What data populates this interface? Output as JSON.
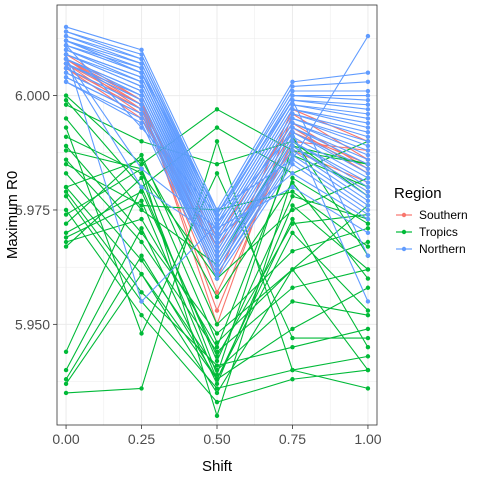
{
  "chart_data": {
    "type": "line",
    "xlabel": "Shift",
    "ylabel": "Maximum R0",
    "x": [
      0.0,
      0.25,
      0.5,
      0.75,
      1.0
    ],
    "x_ticks": [
      "0.00",
      "0.25",
      "0.50",
      "0.75",
      "1.00"
    ],
    "y_ticks": [
      "5.950",
      "5.975",
      "6.000"
    ],
    "xlim": [
      -0.03,
      1.03
    ],
    "ylim": [
      5.928,
      6.0198
    ],
    "grid": true,
    "legend": {
      "title": "Region",
      "placement": "right",
      "entries": [
        "Southern",
        "Tropics",
        "Northern"
      ]
    },
    "colors": {
      "Southern": "#F8766D",
      "Tropics": "#00BA38",
      "Northern": "#619CFF"
    },
    "series": [
      {
        "region": "Southern",
        "values": [
          6.008,
          5.999,
          5.95,
          5.996,
          5.986
        ]
      },
      {
        "region": "Southern",
        "values": [
          6.007,
          5.998,
          5.953,
          5.993,
          5.983
        ]
      },
      {
        "region": "Southern",
        "values": [
          6.006,
          5.997,
          5.957,
          5.99,
          5.988
        ]
      },
      {
        "region": "Southern",
        "values": [
          6.009,
          5.999,
          5.96,
          5.997,
          5.99
        ]
      },
      {
        "region": "Southern",
        "values": [
          6.007,
          5.996,
          5.962,
          5.989,
          5.979
        ]
      },
      {
        "region": "Southern",
        "values": [
          6.008,
          5.998,
          5.965,
          5.992,
          5.985
        ]
      },
      {
        "region": "Southern",
        "values": [
          6.006,
          5.995,
          5.967,
          5.988,
          5.981
        ]
      },
      {
        "region": "Southern",
        "values": [
          6.008,
          5.997,
          5.969,
          5.994,
          5.984
        ]
      },
      {
        "region": "Tropics",
        "values": [
          6.0,
          5.985,
          5.997,
          5.988,
          5.985
        ]
      },
      {
        "region": "Tropics",
        "values": [
          5.999,
          5.98,
          5.993,
          5.983,
          5.99
        ]
      },
      {
        "region": "Tropics",
        "values": [
          5.998,
          5.99,
          5.985,
          5.99,
          5.978
        ]
      },
      {
        "region": "Tropics",
        "values": [
          5.995,
          5.975,
          5.963,
          5.991,
          5.965
        ]
      },
      {
        "region": "Tropics",
        "values": [
          5.991,
          5.983,
          5.96,
          5.975,
          5.982
        ]
      },
      {
        "region": "Tropics",
        "values": [
          5.989,
          5.97,
          5.948,
          5.962,
          5.976
        ]
      },
      {
        "region": "Tropics",
        "values": [
          5.986,
          5.968,
          5.944,
          5.958,
          5.962
        ]
      },
      {
        "region": "Tropics",
        "values": [
          5.983,
          5.964,
          5.94,
          5.955,
          5.952
        ]
      },
      {
        "region": "Tropics",
        "values": [
          5.98,
          5.961,
          5.938,
          5.949,
          5.958
        ]
      },
      {
        "region": "Tropics",
        "values": [
          5.979,
          5.957,
          5.941,
          5.945,
          5.949
        ]
      },
      {
        "region": "Tropics",
        "values": [
          5.978,
          5.955,
          5.936,
          5.94,
          5.943
        ]
      },
      {
        "region": "Tropics",
        "values": [
          5.975,
          5.952,
          5.933,
          5.938,
          5.94
        ]
      },
      {
        "region": "Tropics",
        "values": [
          5.974,
          5.984,
          5.946,
          5.962,
          5.968
        ]
      },
      {
        "region": "Tropics",
        "values": [
          5.972,
          5.987,
          5.95,
          5.966,
          5.971
        ]
      },
      {
        "region": "Tropics",
        "values": [
          5.97,
          5.979,
          5.943,
          5.972,
          5.974
        ]
      },
      {
        "region": "Tropics",
        "values": [
          5.969,
          5.977,
          5.938,
          5.97,
          5.953
        ]
      },
      {
        "region": "Tropics",
        "values": [
          5.968,
          5.973,
          5.945,
          5.987,
          5.98
        ]
      },
      {
        "region": "Tropics",
        "values": [
          5.967,
          5.982,
          5.939,
          5.989,
          5.985
        ]
      },
      {
        "region": "Tropics",
        "values": [
          5.98,
          5.986,
          5.956,
          5.981,
          5.96
        ]
      },
      {
        "region": "Tropics",
        "values": [
          5.985,
          5.976,
          5.975,
          5.979,
          5.967
        ]
      },
      {
        "region": "Tropics",
        "values": [
          5.944,
          5.98,
          5.942,
          5.978,
          5.973
        ]
      },
      {
        "region": "Tropics",
        "values": [
          5.94,
          5.971,
          5.937,
          5.976,
          5.962
        ]
      },
      {
        "region": "Tropics",
        "values": [
          5.938,
          5.965,
          5.938,
          5.973,
          5.945
        ]
      },
      {
        "region": "Tropics",
        "values": [
          5.937,
          5.961,
          5.935,
          5.962,
          5.94
        ]
      },
      {
        "region": "Tropics",
        "values": [
          5.935,
          5.936,
          5.99,
          5.94,
          5.936
        ]
      },
      {
        "region": "Tropics",
        "values": [
          5.993,
          5.948,
          5.983,
          5.947,
          5.947
        ]
      },
      {
        "region": "Tropics",
        "values": [
          5.988,
          5.984,
          5.93,
          5.982,
          5.972
        ]
      },
      {
        "region": "Northern",
        "values": [
          6.015,
          6.01,
          5.975,
          6.003,
          6.005
        ]
      },
      {
        "region": "Northern",
        "values": [
          6.014,
          6.009,
          5.974,
          6.002,
          6.003
        ]
      },
      {
        "region": "Northern",
        "values": [
          6.014,
          6.008,
          5.974,
          6.001,
          6.001
        ]
      },
      {
        "region": "Northern",
        "values": [
          6.013,
          6.008,
          5.973,
          6.0,
          6.0
        ]
      },
      {
        "region": "Northern",
        "values": [
          6.013,
          6.007,
          5.973,
          6.0,
          5.999
        ]
      },
      {
        "region": "Northern",
        "values": [
          6.012,
          6.007,
          5.972,
          5.999,
          5.998
        ]
      },
      {
        "region": "Northern",
        "values": [
          6.012,
          6.006,
          5.972,
          5.999,
          5.997
        ]
      },
      {
        "region": "Northern",
        "values": [
          6.011,
          6.006,
          5.971,
          5.998,
          5.996
        ]
      },
      {
        "region": "Northern",
        "values": [
          6.011,
          6.005,
          5.971,
          5.998,
          5.995
        ]
      },
      {
        "region": "Northern",
        "values": [
          6.011,
          6.005,
          5.97,
          5.997,
          5.994
        ]
      },
      {
        "region": "Northern",
        "values": [
          6.01,
          6.004,
          5.97,
          5.997,
          5.993
        ]
      },
      {
        "region": "Northern",
        "values": [
          6.01,
          6.004,
          5.969,
          5.996,
          5.992
        ]
      },
      {
        "region": "Northern",
        "values": [
          6.01,
          6.003,
          5.969,
          5.996,
          5.991
        ]
      },
      {
        "region": "Northern",
        "values": [
          6.009,
          6.003,
          5.968,
          5.995,
          5.99
        ]
      },
      {
        "region": "Northern",
        "values": [
          6.009,
          6.002,
          5.968,
          5.995,
          5.989
        ]
      },
      {
        "region": "Northern",
        "values": [
          6.009,
          6.002,
          5.967,
          5.994,
          5.988
        ]
      },
      {
        "region": "Northern",
        "values": [
          6.008,
          6.001,
          5.967,
          5.994,
          5.987
        ]
      },
      {
        "region": "Northern",
        "values": [
          6.008,
          6.001,
          5.966,
          5.993,
          5.986
        ]
      },
      {
        "region": "Northern",
        "values": [
          6.008,
          6.0,
          5.966,
          5.993,
          5.985
        ]
      },
      {
        "region": "Northern",
        "values": [
          6.007,
          6.0,
          5.965,
          5.992,
          5.984
        ]
      },
      {
        "region": "Northern",
        "values": [
          6.007,
          5.999,
          5.965,
          5.992,
          5.983
        ]
      },
      {
        "region": "Northern",
        "values": [
          6.007,
          5.999,
          5.964,
          5.991,
          5.982
        ]
      },
      {
        "region": "Northern",
        "values": [
          6.006,
          5.998,
          5.964,
          5.99,
          5.981
        ]
      },
      {
        "region": "Northern",
        "values": [
          6.006,
          5.998,
          5.963,
          5.99,
          5.98
        ]
      },
      {
        "region": "Northern",
        "values": [
          6.005,
          5.997,
          5.963,
          5.989,
          5.979
        ]
      },
      {
        "region": "Northern",
        "values": [
          6.005,
          5.997,
          5.962,
          5.989,
          5.978
        ]
      },
      {
        "region": "Northern",
        "values": [
          6.004,
          5.996,
          5.962,
          5.988,
          5.977
        ]
      },
      {
        "region": "Northern",
        "values": [
          6.004,
          5.996,
          5.961,
          5.987,
          5.976
        ]
      },
      {
        "region": "Northern",
        "values": [
          6.003,
          5.995,
          5.961,
          5.986,
          5.975
        ]
      },
      {
        "region": "Northern",
        "values": [
          6.003,
          5.994,
          5.96,
          5.985,
          5.974
        ]
      },
      {
        "region": "Northern",
        "values": [
          6.012,
          6.005,
          5.975,
          5.986,
          6.013
        ]
      },
      {
        "region": "Northern",
        "values": [
          6.011,
          5.993,
          5.974,
          5.999,
          5.965
        ]
      },
      {
        "region": "Northern",
        "values": [
          6.009,
          5.955,
          5.972,
          5.992,
          5.955
        ]
      },
      {
        "region": "Northern",
        "values": [
          6.008,
          5.984,
          5.971,
          5.98,
          5.97
        ]
      },
      {
        "region": "Northern",
        "values": [
          6.007,
          5.98,
          5.969,
          5.983,
          5.973
        ]
      }
    ]
  }
}
